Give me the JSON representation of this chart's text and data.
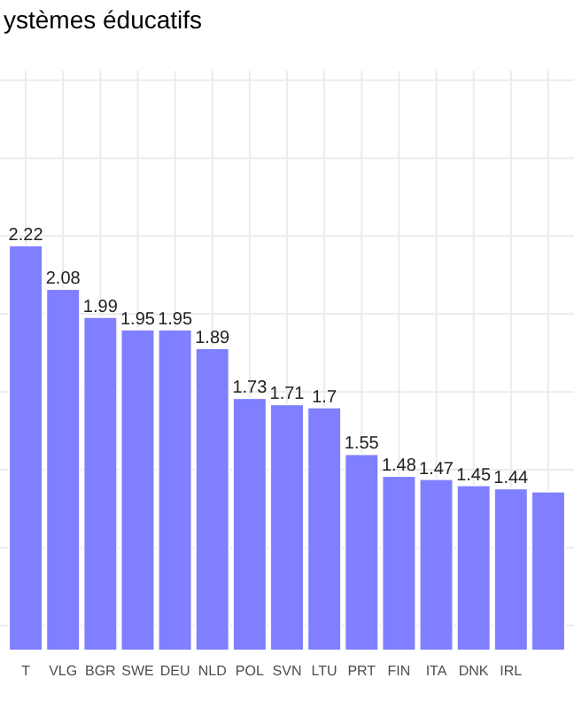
{
  "chart_data": {
    "type": "bar",
    "title": "ystèmes éducatifs",
    "categories": [
      "T",
      "VLG",
      "BGR",
      "SWE",
      "DEU",
      "NLD",
      "POL",
      "SVN",
      "LTU",
      "PRT",
      "FIN",
      "ITA",
      "DNK",
      "IRL",
      null
    ],
    "values": [
      2.22,
      2.08,
      1.99,
      1.95,
      1.95,
      1.89,
      1.73,
      1.71,
      1.7,
      1.55,
      1.48,
      1.47,
      1.45,
      1.44,
      1.43
    ],
    "value_labels": [
      "2.22",
      "2.08",
      "1.99",
      "1.95",
      "1.95",
      "1.89",
      "1.73",
      "1.71",
      "1.7",
      "1.55",
      "1.48",
      "1.47",
      "1.45",
      "1.44",
      null
    ],
    "color": "#7f7fff",
    "ylim": [
      0.92,
      2.78
    ],
    "yticks": [
      {
        "value": 1,
        "label": null
      },
      {
        "value": 1.25,
        "label": null
      },
      {
        "value": 1.5,
        "label": null
      },
      {
        "value": 1.75,
        "label": null
      },
      {
        "value": 2,
        "label": null
      },
      {
        "value": 2.25,
        "label": null
      },
      {
        "value": 2.5,
        "label": null
      },
      {
        "value": 2.75,
        "label": null
      }
    ],
    "tick_labels": "x",
    "grid": true
  }
}
